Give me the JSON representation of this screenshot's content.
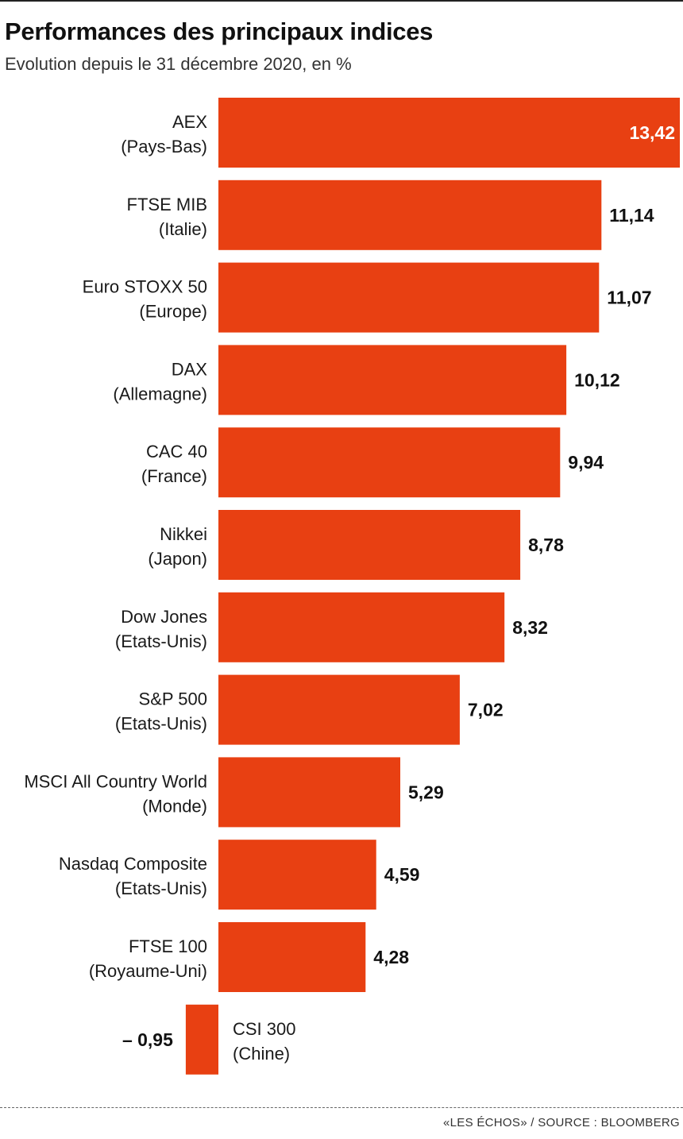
{
  "header": {
    "title": "Performances des principaux indices",
    "subtitle": "Evolution depuis le 31 décembre 2020, en %"
  },
  "footer": {
    "source": "«LES ÉCHOS» / SOURCE : BLOOMBERG"
  },
  "colors": {
    "bar": "#e84012",
    "value_inside": "#ffffff",
    "value_outside": "#111111"
  },
  "chart_data": {
    "type": "bar",
    "orientation": "horizontal",
    "title": "Performances des principaux indices",
    "subtitle": "Evolution depuis le 31 décembre 2020, en %",
    "unit": "%",
    "grid": false,
    "categories": [
      {
        "name": "AEX",
        "region": "(Pays-Bas)",
        "value": 13.42,
        "label": "13,42"
      },
      {
        "name": "FTSE MIB",
        "region": "(Italie)",
        "value": 11.14,
        "label": "11,14"
      },
      {
        "name": "Euro STOXX 50",
        "region": "(Europe)",
        "value": 11.07,
        "label": "11,07"
      },
      {
        "name": "DAX",
        "region": "(Allemagne)",
        "value": 10.12,
        "label": "10,12"
      },
      {
        "name": "CAC 40",
        "region": "(France)",
        "value": 9.94,
        "label": "9,94"
      },
      {
        "name": "Nikkei",
        "region": "(Japon)",
        "value": 8.78,
        "label": "8,78"
      },
      {
        "name": "Dow Jones",
        "region": "(Etats-Unis)",
        "value": 8.32,
        "label": "8,32"
      },
      {
        "name": "S&P 500",
        "region": "(Etats-Unis)",
        "value": 7.02,
        "label": "7,02"
      },
      {
        "name": "MSCI All Country World",
        "region": "(Monde)",
        "value": 5.29,
        "label": "5,29"
      },
      {
        "name": "Nasdaq Composite",
        "region": "(Etats-Unis)",
        "value": 4.59,
        "label": "4,59"
      },
      {
        "name": "FTSE 100",
        "region": "(Royaume-Uni)",
        "value": 4.28,
        "label": "4,28"
      },
      {
        "name": "CSI 300",
        "region": "(Chine)",
        "value": -0.95,
        "label": "– 0,95"
      }
    ]
  }
}
